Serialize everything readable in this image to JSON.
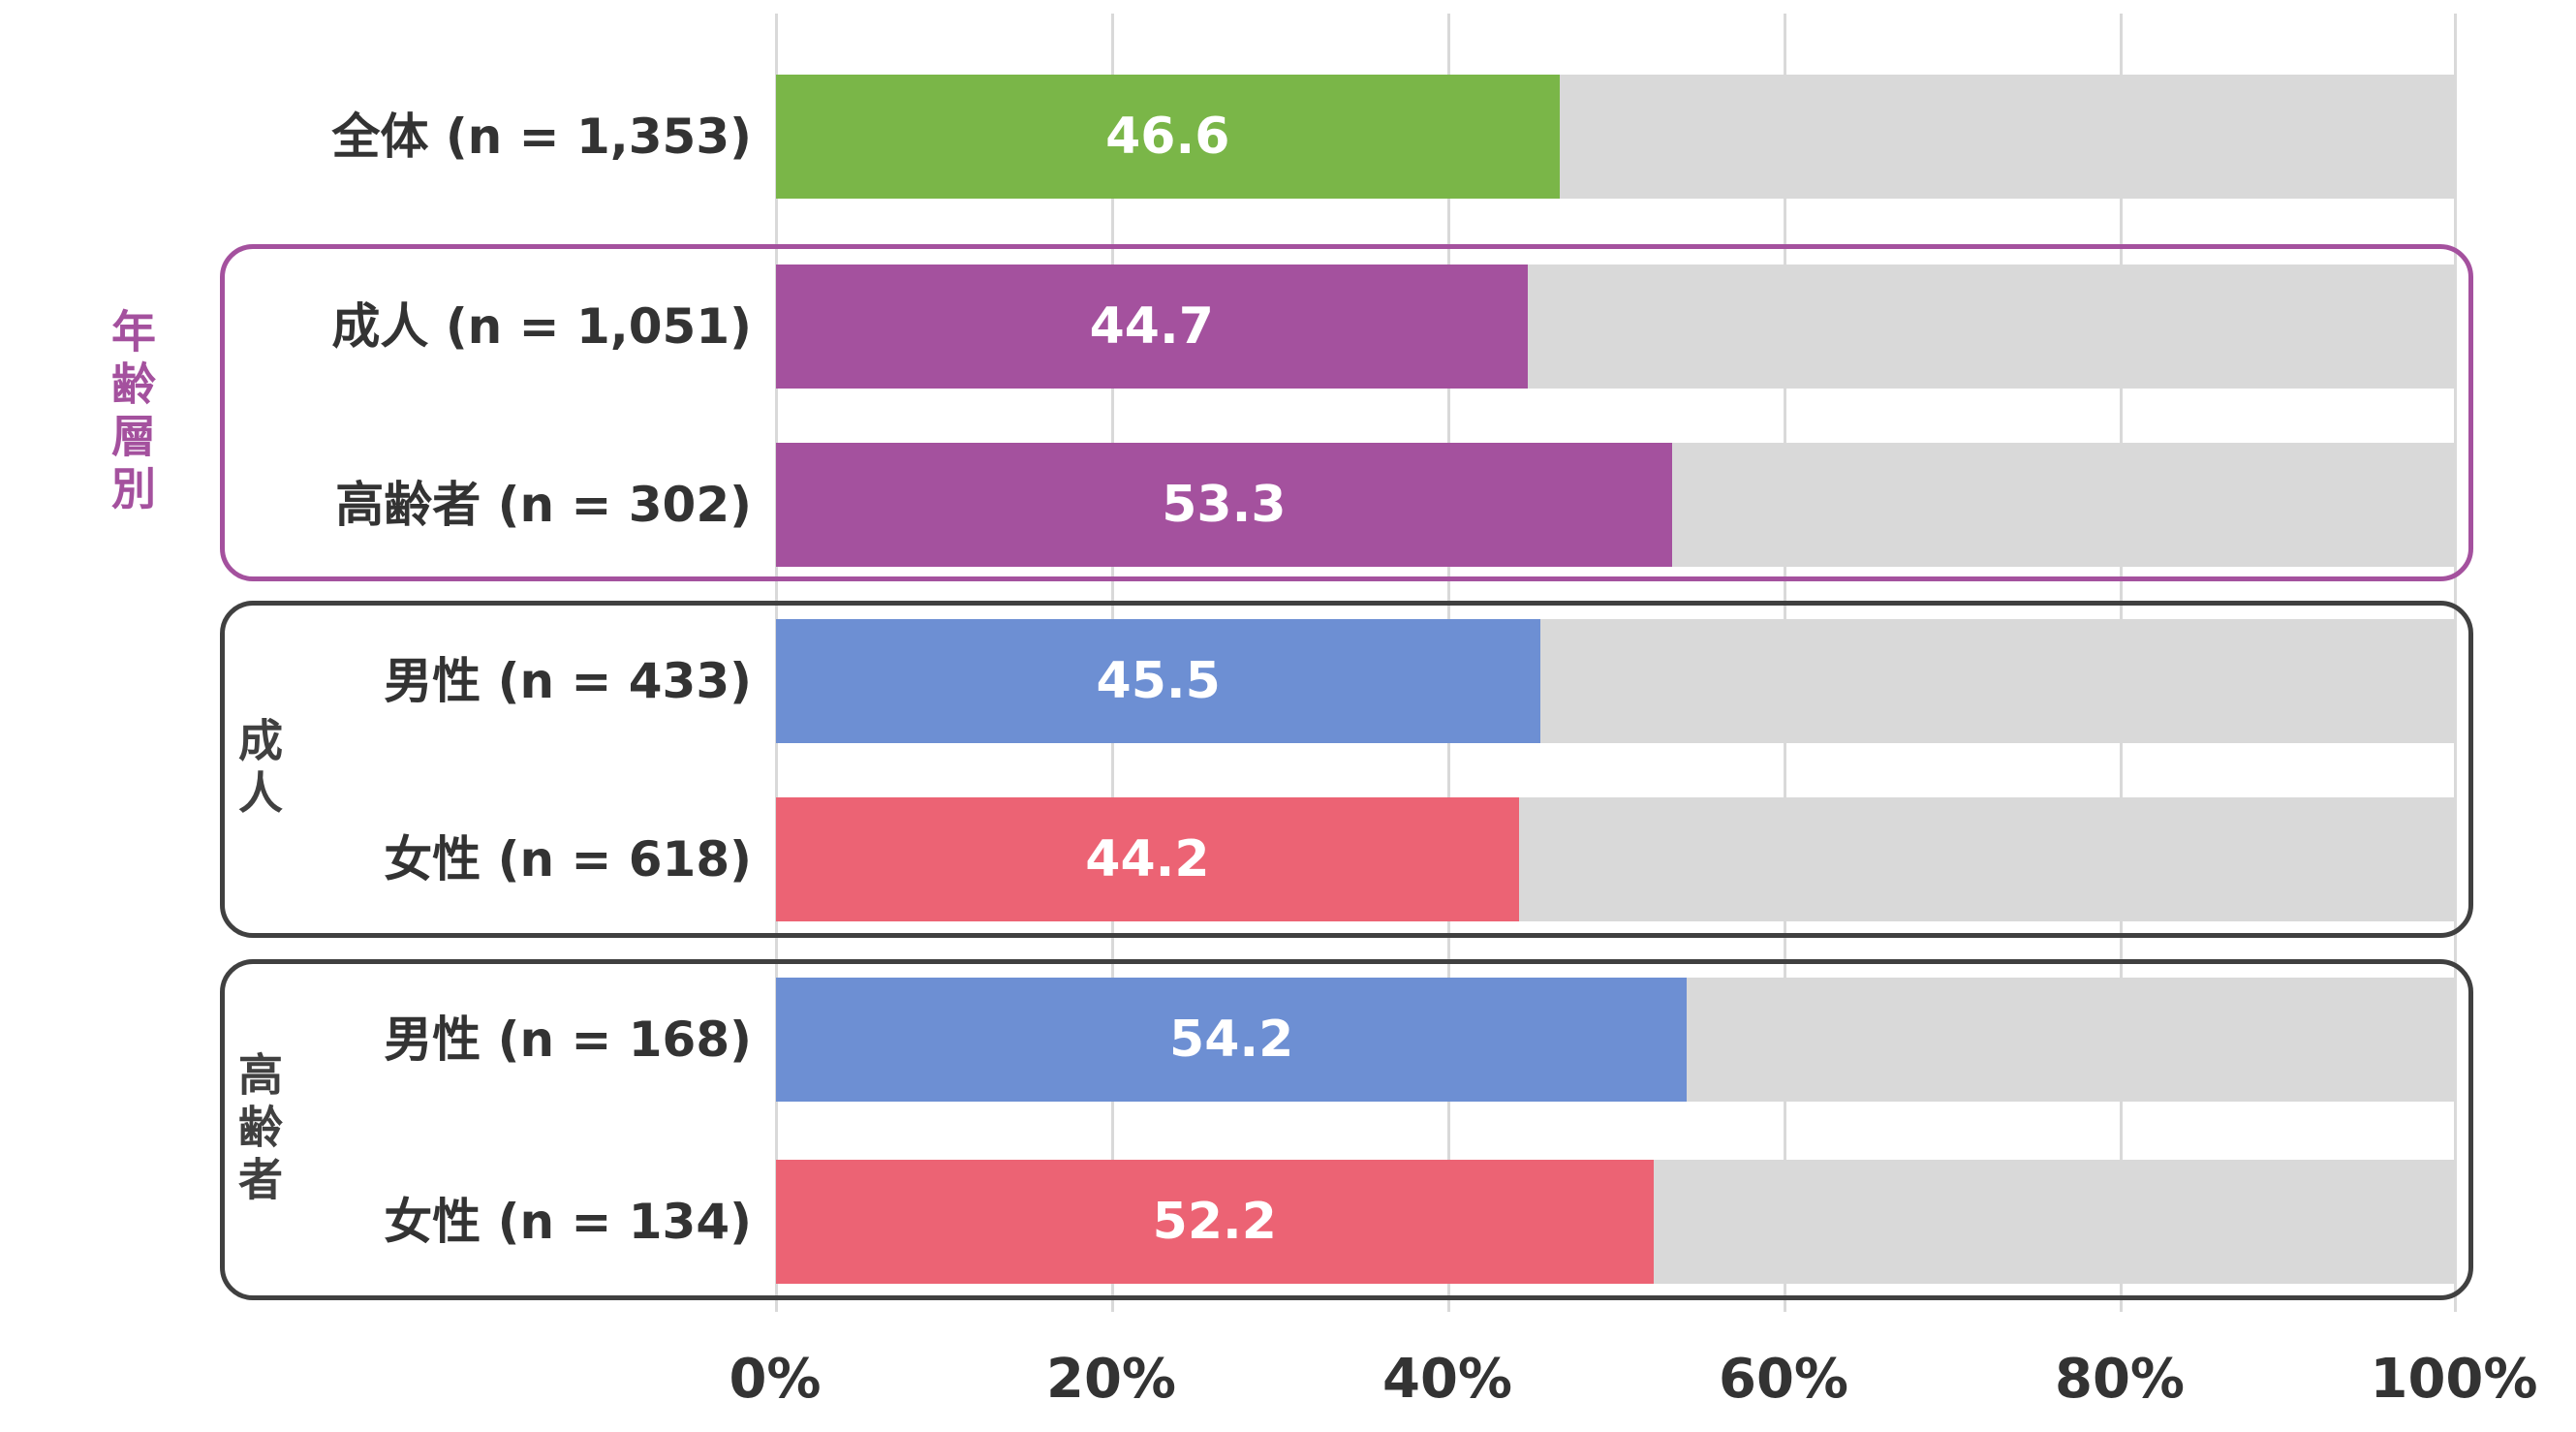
{
  "chart_data": {
    "type": "bar",
    "orientation": "horizontal",
    "title": "",
    "xlabel": "",
    "ylabel": "",
    "xlim": [
      0,
      100
    ],
    "grid": true,
    "legend": false,
    "x_ticks": [
      "0%",
      "20%",
      "40%",
      "60%",
      "80%",
      "100%"
    ],
    "track_color": "#d9d9d9",
    "rows": [
      {
        "label": "全体 (n = 1,353)",
        "value": 46.6,
        "color": "#7ab648"
      },
      {
        "label": "成人 (n = 1,051)",
        "value": 44.7,
        "color": "#a4519e"
      },
      {
        "label": "高齢者 (n = 302)",
        "value": 53.3,
        "color": "#a4519e"
      },
      {
        "label": "男性 (n = 433)",
        "value": 45.5,
        "color": "#6d8fd3"
      },
      {
        "label": "女性 (n = 618)",
        "value": 44.2,
        "color": "#ec6374"
      },
      {
        "label": "男性 (n = 168)",
        "value": 54.2,
        "color": "#6d8fd3"
      },
      {
        "label": "女性 (n = 134)",
        "value": 52.2,
        "color": "#ec6374"
      }
    ],
    "groups": [
      {
        "label": "年齢層別",
        "member_rows": [
          "成人 (n = 1,051)",
          "高齢者 (n = 302)"
        ],
        "border_color": "#a4519e",
        "label_color": "#a4519e"
      },
      {
        "label": "成人",
        "member_rows": [
          "男性 (n = 433)",
          "女性 (n = 618)"
        ],
        "border_color": "#404040",
        "label_color": "#404040"
      },
      {
        "label": "高齢者",
        "member_rows": [
          "男性 (n = 168)",
          "女性 (n = 134)"
        ],
        "border_color": "#404040",
        "label_color": "#404040"
      }
    ]
  }
}
